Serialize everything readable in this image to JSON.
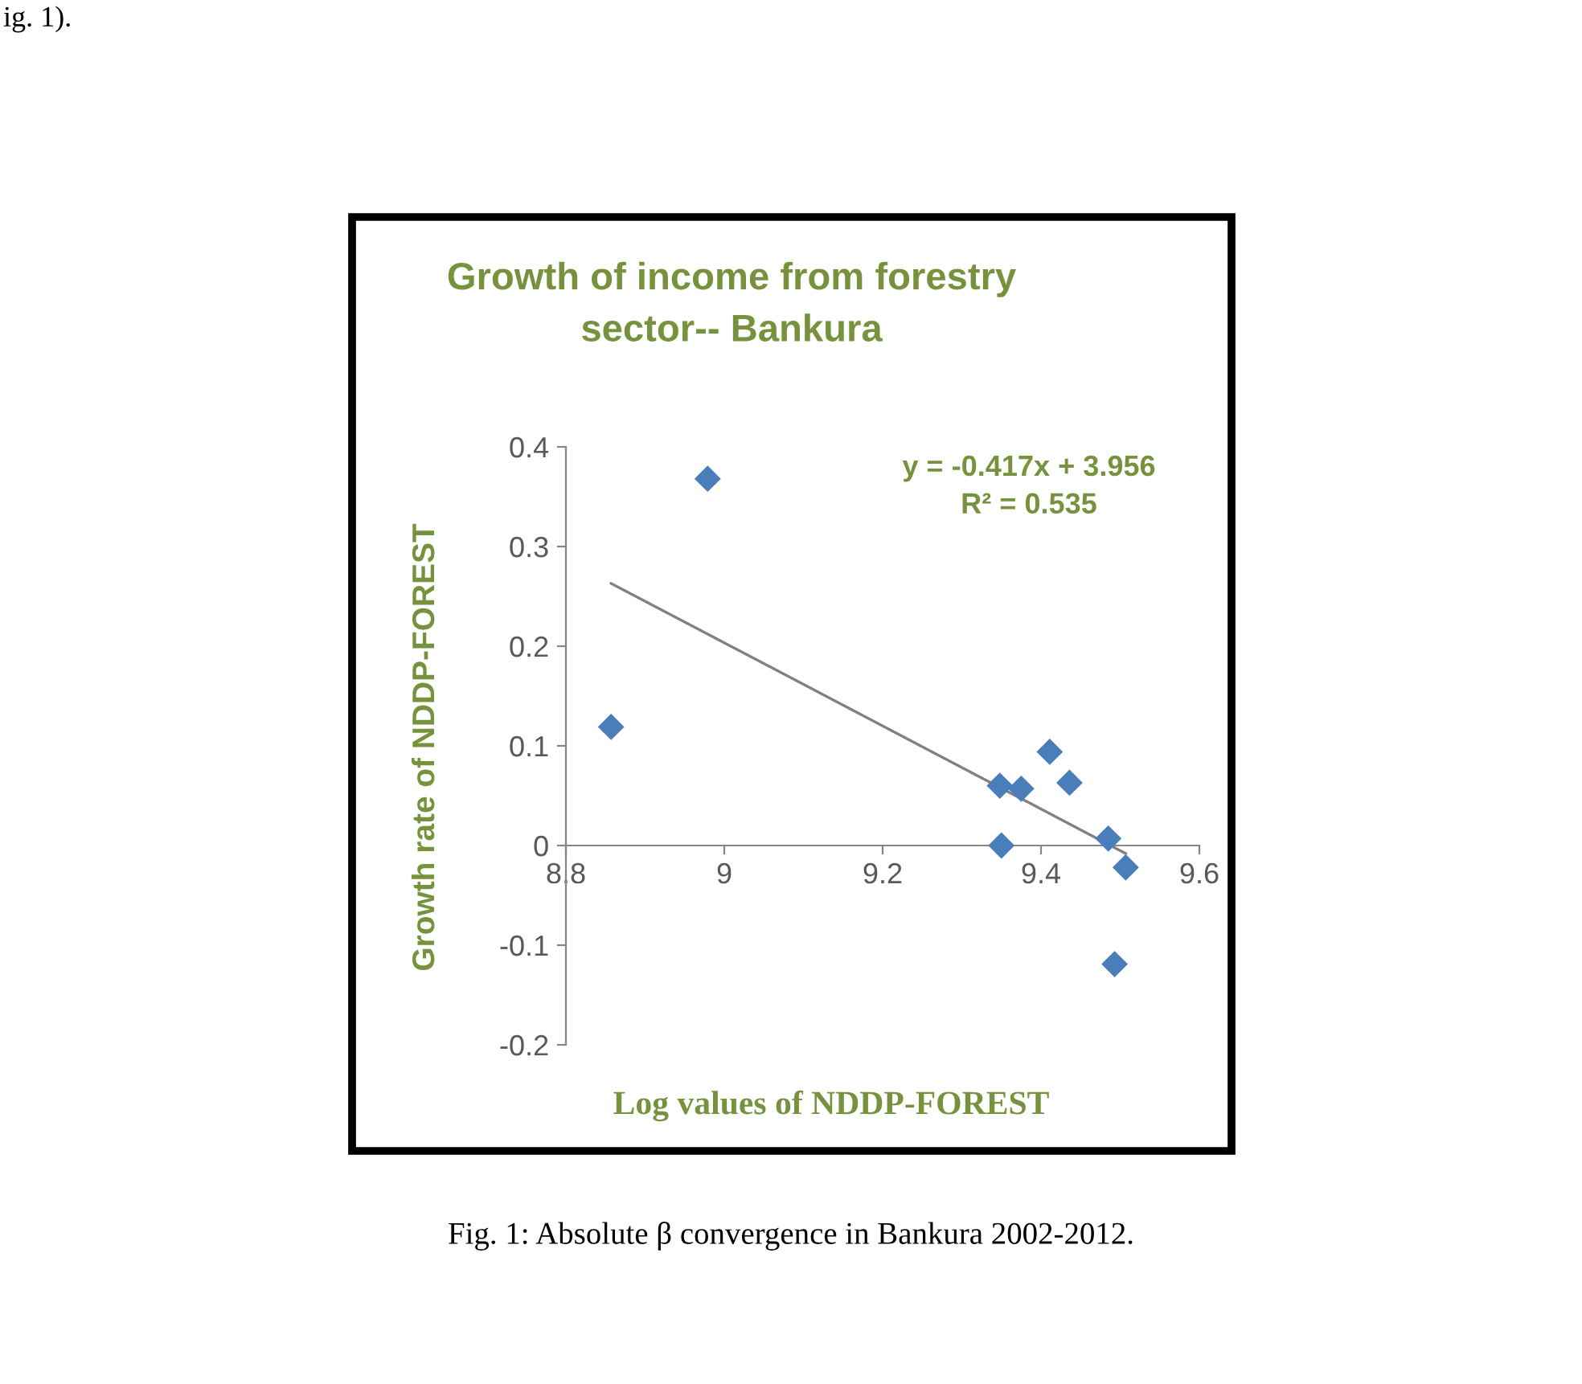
{
  "chart_data": {
    "type": "scatter",
    "title": "Growth of income from forestry\nsector-- Bankura",
    "xlabel": "Log values of NDDP-FOREST",
    "ylabel": "Growth rate of NDDP-FOREST",
    "xlim": [
      8.8,
      9.6
    ],
    "xticks": [
      8.8,
      9,
      9.2,
      9.4,
      9.6
    ],
    "ylim": [
      -0.2,
      0.4
    ],
    "yticks": [
      -0.2,
      -0.1,
      0,
      0.1,
      0.2,
      0.3,
      0.4
    ],
    "series": [
      {
        "marker": "diamond",
        "color": "#4a7ebb",
        "x": [
          8.979,
          8.857,
          9.348,
          9.375,
          9.411,
          9.436,
          9.35,
          9.485,
          9.507,
          9.493
        ],
        "values": [
          0.368,
          0.119,
          0.06,
          0.057,
          0.094,
          0.063,
          0.0,
          0.007,
          -0.022,
          -0.119
        ]
      },
      {
        "type": "line",
        "color": "#808080",
        "x": [
          8.857,
          9.507
        ],
        "values": [
          0.263,
          -0.008
        ]
      }
    ],
    "annotations": [
      "y = -0.417x + 3.956\nR² = 0.535",
      "Fig. 1: Absolute β convergence in Bankura 2002-2012.",
      "ig. 1)."
    ]
  }
}
